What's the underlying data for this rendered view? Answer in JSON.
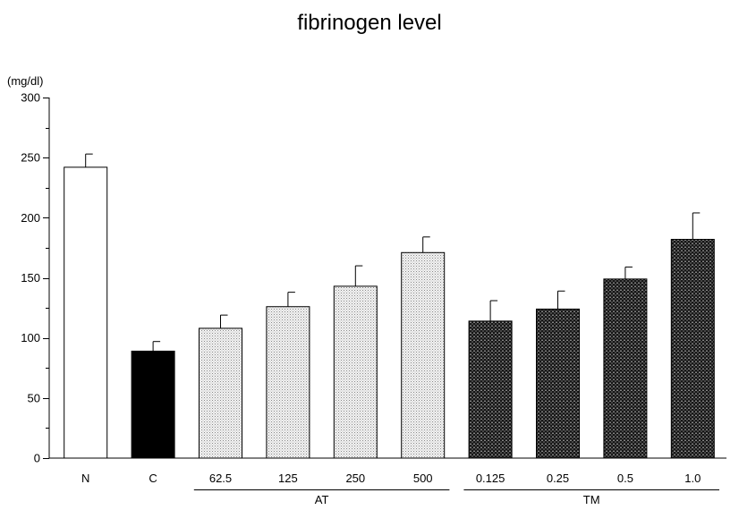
{
  "chart_data": {
    "type": "bar",
    "title": "fibrinogen level",
    "ylabel": "(mg/dl)",
    "xlabel": "",
    "ylim": [
      0,
      300
    ],
    "yticks": [
      0,
      50,
      100,
      150,
      200,
      250,
      300
    ],
    "categories": [
      "N",
      "C",
      "62.5",
      "125",
      "250",
      "500",
      "0.125",
      "0.25",
      "0.5",
      "1.0"
    ],
    "values": [
      242,
      89,
      108,
      126,
      143,
      171,
      114,
      124,
      149,
      182
    ],
    "errors": [
      11,
      8,
      11,
      12,
      17,
      13,
      17,
      15,
      10,
      22
    ],
    "fills": [
      "white",
      "black",
      "light-dots",
      "light-dots",
      "light-dots",
      "light-dots",
      "dark-crosshatch",
      "dark-crosshatch",
      "dark-crosshatch",
      "dark-crosshatch"
    ],
    "groups": [
      {
        "label": "AT",
        "categories": [
          "62.5",
          "125",
          "250",
          "500"
        ]
      },
      {
        "label": "TM",
        "categories": [
          "0.125",
          "0.25",
          "0.5",
          "1.0"
        ]
      }
    ],
    "grid": false,
    "legend": "none"
  }
}
